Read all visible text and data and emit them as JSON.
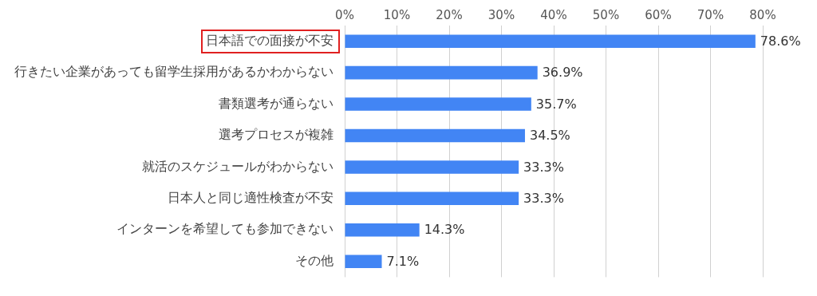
{
  "chart_data": {
    "type": "bar",
    "orientation": "horizontal",
    "categories": [
      "日本語での面接が不安",
      "行きたい企業があっても留学生採用があるかわからない",
      "書類選考が通らない",
      "選考プロセスが複雑",
      "就活のスケジュールがわからない",
      "日本人と同じ適性検査が不安",
      "インターンを希望しても参加できない",
      "その他"
    ],
    "values": [
      78.6,
      36.9,
      35.7,
      34.5,
      33.3,
      33.3,
      14.3,
      7.1
    ],
    "value_labels": [
      "78.6%",
      "36.9%",
      "35.7%",
      "34.5%",
      "33.3%",
      "33.3%",
      "14.3%",
      "7.1%"
    ],
    "color": "#4285f4",
    "xlim": [
      0,
      80
    ],
    "xticks": [
      {
        "value": 0,
        "label": "0%"
      },
      {
        "value": 10,
        "label": "10%"
      },
      {
        "value": 20,
        "label": "20%"
      },
      {
        "value": 30,
        "label": "30%"
      },
      {
        "value": 40,
        "label": "40%"
      },
      {
        "value": 50,
        "label": "50%"
      },
      {
        "value": 60,
        "label": "60%"
      },
      {
        "value": 70,
        "label": "70%"
      },
      {
        "value": 80,
        "label": "80%"
      }
    ],
    "grid": "x",
    "legend": false
  }
}
